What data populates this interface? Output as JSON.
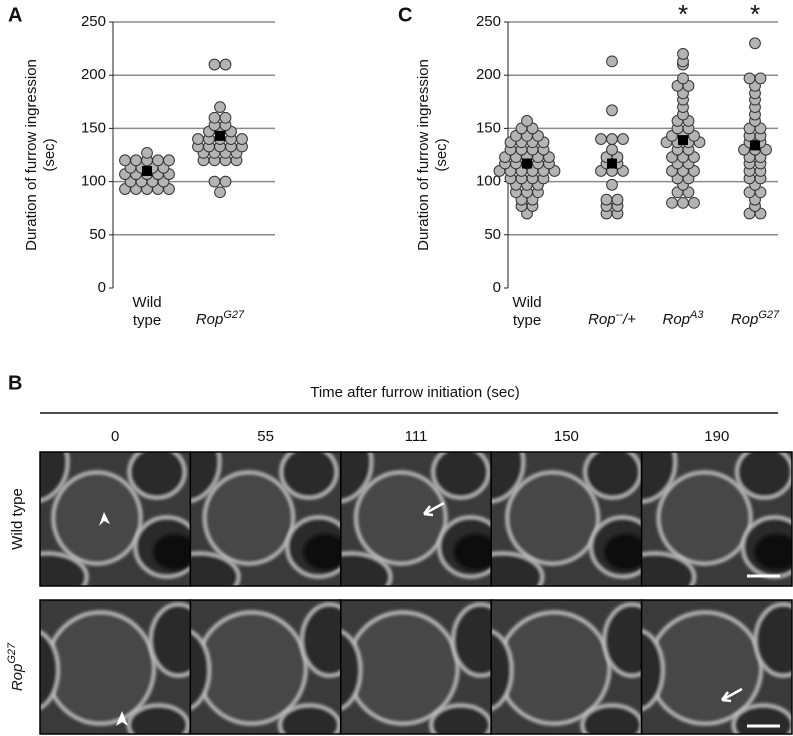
{
  "chart_data": [
    {
      "type": "dot",
      "panel": "A",
      "ylabel": [
        "Duration of furrow ingression",
        "(sec)"
      ],
      "categories": [
        {
          "base": "Wild type"
        },
        {
          "base": "Rop",
          "sup": "G27"
        }
      ],
      "values": [
        [
          93,
          93,
          93,
          93,
          93,
          100,
          100,
          100,
          100,
          107,
          107,
          107,
          107,
          107,
          113,
          113,
          113,
          113,
          120,
          120,
          120,
          120,
          120,
          127
        ],
        [
          90,
          100,
          100,
          120,
          120,
          120,
          120,
          127,
          127,
          127,
          127,
          133,
          133,
          133,
          133,
          133,
          140,
          140,
          140,
          140,
          140,
          147,
          147,
          147,
          153,
          153,
          160,
          160,
          170,
          210,
          210
        ]
      ],
      "means": [
        110,
        143
      ],
      "color": "#b4b4b4",
      "mean_color": "#000000",
      "ylim": [
        0,
        250
      ],
      "yticks": [
        0,
        50,
        100,
        150,
        200,
        250
      ],
      "grid": true
    },
    {
      "type": "dot",
      "panel": "C",
      "ylabel": [
        "Duration of furrow ingression",
        "(sec)"
      ],
      "categories": [
        {
          "base": "Wild type"
        },
        {
          "base": "Rop",
          "sup": "--",
          "tail": "/+"
        },
        {
          "base": "Rop",
          "sup": "A3"
        },
        {
          "base": "Rop",
          "sup": "G27"
        }
      ],
      "values": [
        [
          70,
          77,
          77,
          83,
          83,
          90,
          90,
          90,
          97,
          97,
          97,
          103,
          103,
          103,
          103,
          110,
          110,
          110,
          110,
          110,
          110,
          117,
          117,
          117,
          117,
          117,
          123,
          123,
          123,
          123,
          123,
          130,
          130,
          130,
          130,
          137,
          137,
          137,
          137,
          143,
          143,
          143,
          150,
          150,
          157
        ],
        [
          70,
          70,
          77,
          77,
          83,
          83,
          97,
          110,
          110,
          110,
          117,
          117,
          123,
          123,
          130,
          140,
          140,
          140,
          167,
          213
        ],
        [
          80,
          80,
          80,
          90,
          90,
          97,
          103,
          103,
          110,
          110,
          110,
          117,
          117,
          123,
          123,
          123,
          130,
          130,
          137,
          137,
          137,
          137,
          143,
          143,
          143,
          150,
          150,
          157,
          157,
          163,
          170,
          177,
          183,
          190,
          190,
          197,
          210,
          213,
          220
        ],
        [
          70,
          70,
          77,
          83,
          90,
          90,
          97,
          103,
          103,
          110,
          110,
          117,
          117,
          123,
          123,
          130,
          130,
          130,
          137,
          137,
          143,
          143,
          150,
          150,
          157,
          163,
          170,
          177,
          183,
          190,
          197,
          197,
          230
        ]
      ],
      "means": [
        117,
        117,
        139,
        134
      ],
      "significance": [
        null,
        null,
        "*",
        "*"
      ],
      "color": "#b4b4b4",
      "mean_color": "#000000",
      "ylim": [
        0,
        250
      ],
      "yticks": [
        0,
        50,
        100,
        150,
        200,
        250
      ],
      "grid": true
    }
  ],
  "panel_b": {
    "label": "B",
    "header": "Time after furrow initiation (sec)",
    "times": [
      0,
      55,
      111,
      150,
      190
    ],
    "rows": [
      {
        "base": "Wild type"
      },
      {
        "base": "Rop",
        "sup": "G27"
      }
    ]
  }
}
